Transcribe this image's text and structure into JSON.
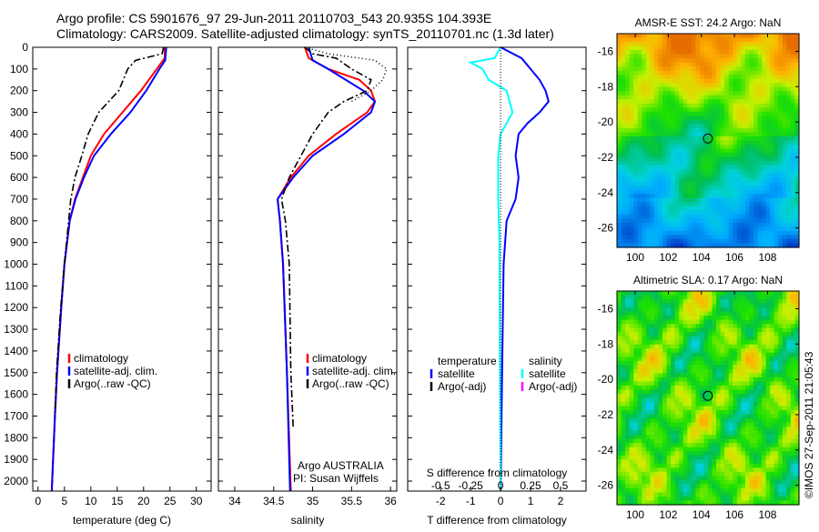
{
  "header": {
    "line1": "Argo profile: CS 5901676_97 29-Jun-2011 20110703_543 20.935S 104.393E",
    "line2": "Climatology: CARS2009. Satellite-adjusted climatology: synTS_20110701.nc (1.3d later)"
  },
  "footer": {
    "credit": "©IMOS 27-Sep-2011 21:05:43"
  },
  "colors": {
    "clim": "#ff0000",
    "sat": "#0000ff",
    "argo": "#000000",
    "s_sat": "#00ffff",
    "s_argo": "#ff00ff"
  },
  "chart_data": [
    {
      "type": "line",
      "id": "temperature",
      "xlabel": "temperature (deg C)",
      "xlim": [
        -1,
        32.8
      ],
      "ylim": [
        0,
        2046
      ],
      "xticks": [
        0,
        5,
        10,
        15,
        20,
        25,
        30
      ],
      "yticks": [
        0,
        100,
        200,
        300,
        400,
        500,
        600,
        700,
        800,
        900,
        1000,
        1100,
        1200,
        1300,
        1400,
        1500,
        1600,
        1700,
        1800,
        1900,
        2000
      ],
      "legend": [
        "climatology",
        "satellite-adj. clim.",
        "Argo(..raw -QC)"
      ],
      "series": [
        {
          "name": "climatology",
          "color": "#ff0000",
          "dash": "",
          "points": [
            [
              24,
              0
            ],
            [
              24,
              50
            ],
            [
              22.5,
              100
            ],
            [
              19.5,
              200
            ],
            [
              16,
              300
            ],
            [
              12.5,
              400
            ],
            [
              10,
              500
            ],
            [
              8.5,
              600
            ],
            [
              7,
              700
            ],
            [
              6,
              800
            ],
            [
              5,
              1000
            ],
            [
              4.4,
              1200
            ],
            [
              3.6,
              1500
            ],
            [
              3.2,
              1700
            ],
            [
              2.6,
              2046
            ]
          ]
        },
        {
          "name": "satellite-adj. clim.",
          "color": "#0000ff",
          "dash": "",
          "points": [
            [
              24.3,
              0
            ],
            [
              24.1,
              60
            ],
            [
              23,
              100
            ],
            [
              20.5,
              200
            ],
            [
              17.5,
              300
            ],
            [
              13.8,
              400
            ],
            [
              10.6,
              500
            ],
            [
              8.7,
              600
            ],
            [
              7.1,
              700
            ],
            [
              6,
              800
            ],
            [
              5,
              1000
            ],
            [
              4.4,
              1200
            ],
            [
              3.6,
              1500
            ],
            [
              3.2,
              1700
            ],
            [
              2.6,
              2046
            ]
          ]
        },
        {
          "name": "Argo(..raw -QC)",
          "color": "#000000",
          "dash": "8 3 2 3",
          "points": [
            [
              23.8,
              0
            ],
            [
              23.5,
              30
            ],
            [
              18.5,
              60
            ],
            [
              17,
              100
            ],
            [
              15.3,
              200
            ],
            [
              11.5,
              300
            ],
            [
              9.5,
              400
            ],
            [
              8.3,
              500
            ],
            [
              7,
              600
            ],
            [
              6.2,
              700
            ],
            [
              5.8,
              800
            ],
            [
              5,
              1000
            ],
            [
              4.3,
              1200
            ],
            [
              3.5,
              1500
            ],
            [
              3.2,
              1700
            ]
          ]
        }
      ]
    },
    {
      "type": "line",
      "id": "salinity",
      "xlabel": "salinity",
      "xlim": [
        33.79,
        36.08
      ],
      "ylim": [
        0,
        2046
      ],
      "xticks": [
        34,
        34.5,
        35,
        35.5,
        36
      ],
      "legend": [
        "climatology",
        "satellite-adj. clim.",
        "Argo(..raw -QC)"
      ],
      "annotation": [
        "Argo AUSTRALIA",
        "PI: Susan Wijffels"
      ],
      "series": [
        {
          "name": "climatology",
          "color": "#ff0000",
          "dash": "",
          "points": [
            [
              34.9,
              0
            ],
            [
              34.95,
              50
            ],
            [
              35.2,
              100
            ],
            [
              35.6,
              150
            ],
            [
              35.75,
              200
            ],
            [
              35.8,
              250
            ],
            [
              35.7,
              300
            ],
            [
              35.3,
              400
            ],
            [
              34.95,
              500
            ],
            [
              34.72,
              600
            ],
            [
              34.55,
              700
            ],
            [
              34.58,
              800
            ],
            [
              34.62,
              1000
            ],
            [
              34.67,
              1500
            ],
            [
              34.72,
              2046
            ]
          ]
        },
        {
          "name": "satellite-adj. clim.",
          "color": "#0000ff",
          "dash": "",
          "points": [
            [
              34.95,
              0
            ],
            [
              35,
              60
            ],
            [
              35.2,
              100
            ],
            [
              35.65,
              200
            ],
            [
              35.8,
              250
            ],
            [
              35.75,
              300
            ],
            [
              35.4,
              400
            ],
            [
              35,
              500
            ],
            [
              34.75,
              600
            ],
            [
              34.55,
              700
            ],
            [
              34.58,
              800
            ],
            [
              34.62,
              1000
            ],
            [
              34.67,
              1500
            ],
            [
              34.71,
              2046
            ]
          ]
        },
        {
          "name": "Argo(..raw -QC)",
          "color": "#000000",
          "dash": "8 3 2 3",
          "points": [
            [
              34.9,
              0
            ],
            [
              35,
              30
            ],
            [
              35.3,
              50
            ],
            [
              35.5,
              100
            ],
            [
              35.75,
              150
            ],
            [
              35.7,
              200
            ],
            [
              35.4,
              250
            ],
            [
              35.2,
              300
            ],
            [
              35,
              400
            ],
            [
              34.85,
              500
            ],
            [
              34.7,
              600
            ],
            [
              34.6,
              700
            ],
            [
              34.65,
              800
            ],
            [
              34.7,
              1000
            ],
            [
              34.72,
              1500
            ],
            [
              34.75,
              1750
            ]
          ]
        },
        {
          "name": "Argo raw",
          "color": "#000000",
          "dash": "1 3",
          "points": [
            [
              34.9,
              0
            ],
            [
              35.2,
              30
            ],
            [
              35.8,
              60
            ],
            [
              35.95,
              100
            ],
            [
              35.9,
              150
            ],
            [
              35.75,
              200
            ],
            [
              35.5,
              250
            ]
          ]
        }
      ]
    },
    {
      "type": "line",
      "id": "difference",
      "xlabel": "T difference from climatology",
      "x2label": "S difference from climatology",
      "xlim": [
        -3.1,
        2.85
      ],
      "ylim": [
        0,
        2046
      ],
      "xticks": [
        -2,
        -1,
        0,
        1,
        2
      ],
      "x2ticks": [
        "-0.5",
        "-0.25",
        "0",
        "0.25",
        "0.5"
      ],
      "x2values": [
        -0.5,
        -0.25,
        0,
        0.25,
        0.5
      ],
      "legend": {
        "t_head": "temperature",
        "s_head": "salinity",
        "items": [
          "satellite",
          "Argo(-adj)",
          "satellite",
          "Argo(-adj)"
        ]
      },
      "series": [
        {
          "name": "T satellite",
          "color": "#0000ff",
          "units": "T",
          "points": [
            [
              0,
              0
            ],
            [
              0.7,
              50
            ],
            [
              1,
              100
            ],
            [
              1.3,
              150
            ],
            [
              1.5,
              200
            ],
            [
              1.6,
              250
            ],
            [
              1.3,
              300
            ],
            [
              0.9,
              350
            ],
            [
              0.6,
              400
            ],
            [
              0.5,
              500
            ],
            [
              0.6,
              600
            ],
            [
              0.5,
              700
            ],
            [
              0.2,
              800
            ],
            [
              0.1,
              1000
            ],
            [
              0.05,
              1500
            ],
            [
              0,
              2046
            ]
          ]
        },
        {
          "name": "S satellite",
          "color": "#00ffff",
          "units": "S",
          "points": [
            [
              0,
              0
            ],
            [
              -0.05,
              50
            ],
            [
              -0.25,
              70
            ],
            [
              -0.15,
              100
            ],
            [
              -0.1,
              150
            ],
            [
              0.05,
              200
            ],
            [
              0.1,
              300
            ],
            [
              0,
              400
            ],
            [
              -0.02,
              500
            ],
            [
              -0.02,
              700
            ],
            [
              -0.01,
              900
            ],
            [
              0,
              2046
            ]
          ]
        }
      ]
    },
    {
      "type": "heatmap",
      "id": "sst",
      "title": "AMSR-E SST: 24.2 Argo: NaN",
      "xticks": [
        100,
        102,
        104,
        106,
        108
      ],
      "yticks": [
        -16,
        -18,
        -20,
        -22,
        -24,
        -26
      ],
      "xlim": [
        98.9,
        109.9
      ],
      "ylim": [
        -27.1,
        -15
      ],
      "marker": [
        104.393,
        -20.935
      ]
    },
    {
      "type": "heatmap",
      "id": "sla",
      "title": "Altimetric SLA: 0.17 Argo: NaN",
      "xticks": [
        100,
        102,
        104,
        106,
        108
      ],
      "yticks": [
        -16,
        -18,
        -20,
        -22,
        -24,
        -26
      ],
      "xlim": [
        98.9,
        109.9
      ],
      "ylim": [
        -27.1,
        -15
      ],
      "marker": [
        104.393,
        -20.935
      ]
    }
  ]
}
